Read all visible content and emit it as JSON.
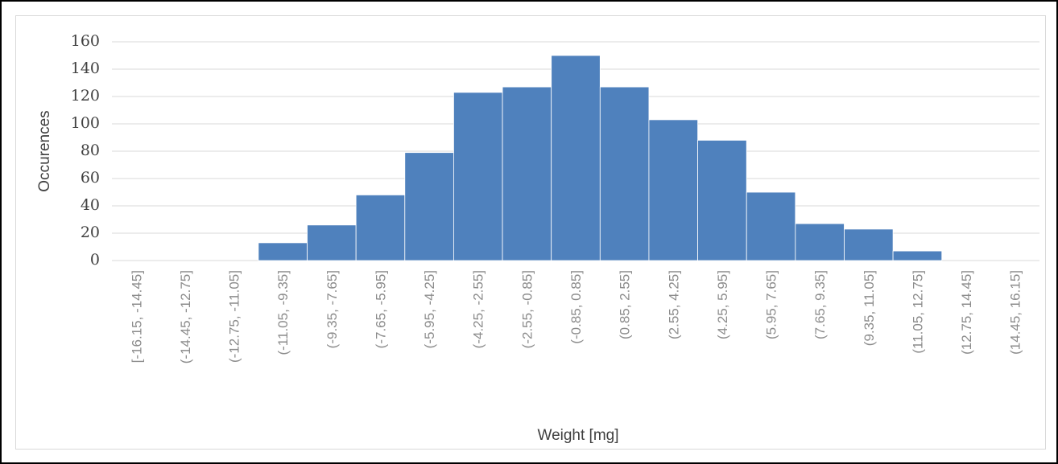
{
  "chart_data": {
    "type": "bar",
    "title": "",
    "xlabel": "Weight [mg]",
    "ylabel": "Occurences",
    "ylim": [
      0,
      160
    ],
    "yticks": [
      0,
      20,
      40,
      60,
      80,
      100,
      120,
      140,
      160
    ],
    "grid": true,
    "legend": "none",
    "bar_color": "#4f81bd",
    "categories": [
      "[-16.15, -14.45]",
      "(-14.45, -12.75]",
      "(-12.75, -11.05]",
      "(-11.05, -9.35]",
      "(-9.35, -7.65]",
      "(-7.65, -5.95]",
      "(-5.95, -4.25]",
      "(-4.25, -2.55]",
      "(-2.55, -0.85]",
      "(-0.85, 0.85]",
      "(0.85, 2.55]",
      "(2.55, 4.25]",
      "(4.25, 5.95]",
      "(5.95, 7.65]",
      "(7.65, 9.35]",
      "(9.35, 11.05]",
      "(11.05, 12.75]",
      "(12.75, 14.45]",
      "(14.45, 16.15]"
    ],
    "values": [
      0,
      0,
      0,
      13,
      26,
      48,
      79,
      123,
      127,
      150,
      127,
      103,
      88,
      50,
      27,
      23,
      7,
      0,
      0
    ]
  }
}
